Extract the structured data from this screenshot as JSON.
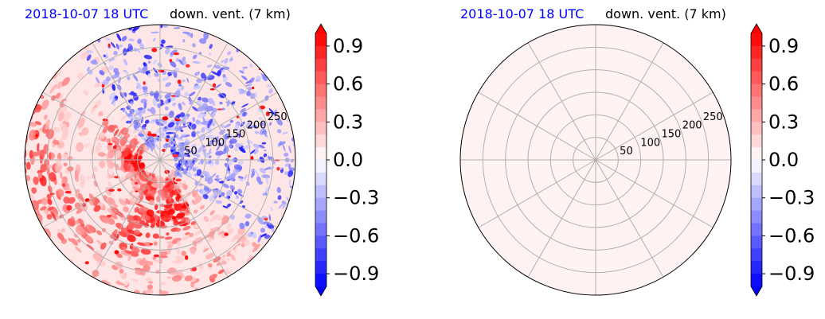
{
  "chart_data": [
    {
      "type": "heatmap",
      "projection": "polar",
      "title_left": "2018-10-07 18 UTC",
      "title_right": "down. vent. (7 km)",
      "radial_ticks": [
        "50",
        "100",
        "150",
        "200",
        "250"
      ],
      "radial_values": [
        50,
        100,
        150,
        200,
        250
      ],
      "rmax": 300,
      "angular_grid_deg": [
        0,
        30,
        60,
        90,
        120,
        150,
        180,
        210,
        240,
        270,
        300,
        330
      ],
      "field": "structured",
      "colorbar": {
        "range": [
          -1.0,
          1.0
        ],
        "extend": "both",
        "colormap": "bwr",
        "ticks": [
          "0.9",
          "0.6",
          "0.3",
          "0.0",
          "−0.3",
          "−0.6",
          "−0.9"
        ],
        "tick_values": [
          0.9,
          0.6,
          0.3,
          0.0,
          -0.3,
          -0.6,
          -0.9
        ]
      }
    },
    {
      "type": "heatmap",
      "projection": "polar",
      "title_left": "2018-10-07 18 UTC",
      "title_right": "down. vent. (7 km)",
      "radial_ticks": [
        "50",
        "100",
        "150",
        "200",
        "250"
      ],
      "radial_values": [
        50,
        100,
        150,
        200,
        250
      ],
      "rmax": 300,
      "angular_grid_deg": [
        0,
        30,
        60,
        90,
        120,
        150,
        180,
        210,
        240,
        270,
        300,
        330
      ],
      "field": "uniform",
      "uniform_value": 0.05,
      "colorbar": {
        "range": [
          -1.0,
          1.0
        ],
        "extend": "both",
        "colormap": "bwr",
        "ticks": [
          "0.9",
          "0.6",
          "0.3",
          "0.0",
          "−0.3",
          "−0.6",
          "−0.9"
        ],
        "tick_values": [
          0.9,
          0.6,
          0.3,
          0.0,
          -0.3,
          -0.6,
          -0.9
        ]
      }
    }
  ],
  "colors": {
    "negative": "#0000ff",
    "zero": "#ffffff",
    "positive": "#ff0000",
    "grid": "#b0b0b0"
  }
}
